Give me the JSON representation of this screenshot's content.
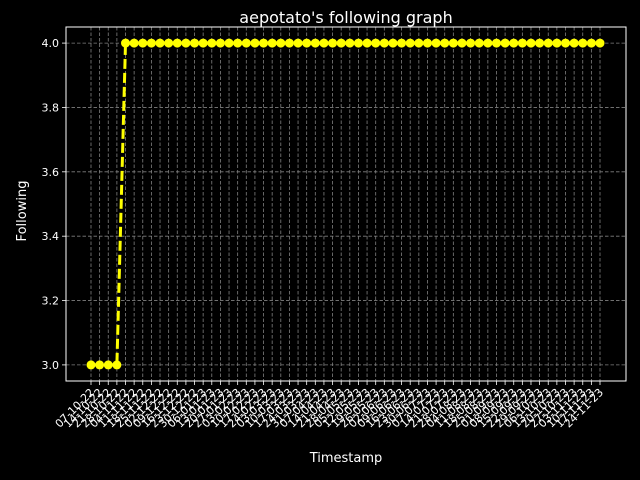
{
  "chart_data": {
    "type": "line",
    "title": "aepotato's following graph",
    "xlabel": "Timestamp",
    "ylabel": "Following",
    "ylim": [
      2.95,
      4.05
    ],
    "yticks": [
      3.0,
      3.2,
      3.4,
      3.6,
      3.8,
      4.0
    ],
    "ytick_labels": [
      "3.0",
      "3.2",
      "3.4",
      "3.6",
      "3.8",
      "4.0"
    ],
    "grid": true,
    "legend": "none",
    "colors": {
      "background": "#000000",
      "line": "#ffff00",
      "grid": "#808080",
      "text": "#ffffff"
    },
    "xtick_labels": [
      "07-10-22",
      "14-10-22",
      "21-10-22",
      "28-10-22",
      "04-11-22",
      "11-11-22",
      "18-11-22",
      "25-11-22",
      "02-12-22",
      "09-12-22",
      "16-12-22",
      "23-12-22",
      "30-12-22",
      "06-01-23",
      "13-01-23",
      "20-01-23",
      "27-01-23",
      "03-02-23",
      "10-02-23",
      "17-02-23",
      "24-02-23",
      "03-03-23",
      "10-03-23",
      "17-03-23",
      "24-03-23",
      "31-03-23",
      "07-04-23",
      "14-04-23",
      "21-04-23",
      "28-04-23",
      "05-05-23",
      "12-05-23",
      "19-05-23",
      "26-05-23",
      "02-06-23",
      "09-06-23",
      "16-06-23",
      "23-06-23",
      "30-06-23",
      "07-07-23",
      "14-07-23",
      "21-07-23",
      "28-07-23",
      "04-08-23",
      "11-08-23",
      "18-08-23",
      "25-08-23",
      "01-09-23",
      "08-09-23",
      "15-09-23",
      "22-09-23",
      "29-09-23",
      "06-10-23",
      "13-10-23",
      "20-10-23",
      "27-10-23",
      "03-11-23",
      "10-11-23",
      "17-11-23",
      "24-11-23"
    ],
    "series": [
      {
        "values": [
          3,
          3,
          3,
          3,
          4,
          4,
          4,
          4,
          4,
          4,
          4,
          4,
          4,
          4,
          4,
          4,
          4,
          4,
          4,
          4,
          4,
          4,
          4,
          4,
          4,
          4,
          4,
          4,
          4,
          4,
          4,
          4,
          4,
          4,
          4,
          4,
          4,
          4,
          4,
          4,
          4,
          4,
          4,
          4,
          4,
          4,
          4,
          4,
          4,
          4,
          4,
          4,
          4,
          4,
          4,
          4,
          4,
          4,
          4,
          4
        ]
      }
    ]
  }
}
